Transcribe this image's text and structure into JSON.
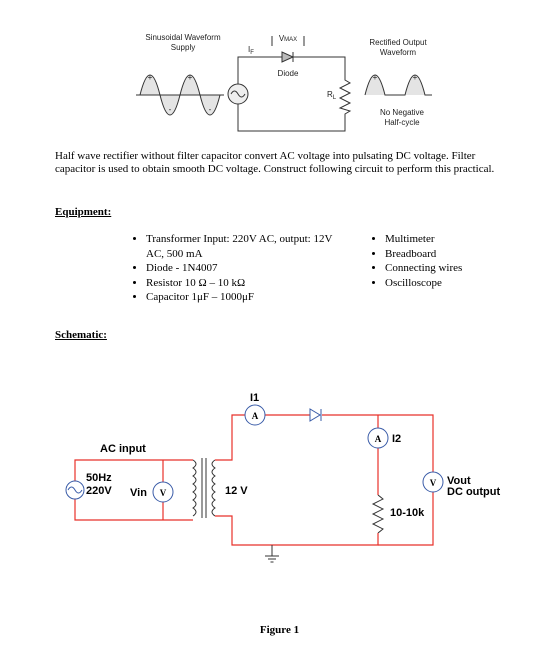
{
  "top_figure": {
    "source_label": [
      "Sinusoidal Waveform",
      "Supply"
    ],
    "current_label": "I",
    "current_subscript": "F",
    "voltage_label": "V",
    "voltage_subscript": "MAX",
    "diode_label": "Diode",
    "load_label": "R",
    "load_subscript": "L",
    "output_label": [
      "Rectified Output",
      "Waveform"
    ],
    "note": [
      "No Negative",
      "Half-cycle"
    ],
    "plus": "+",
    "minus": "-"
  },
  "intro": "Half wave rectifier without filter capacitor convert AC voltage into pulsating DC voltage. Filter capacitor is used to obtain smooth DC voltage. Construct following circuit to perform this practical.",
  "equipment": {
    "heading": "Equipment:",
    "left": [
      "Transformer Input: 220V AC, output: 12V AC, 500 mA",
      "Diode - 1N4007",
      "Resistor 10 Ω – 10 kΩ",
      "Capacitor 1μF – 1000μF"
    ],
    "right": [
      "Multimeter",
      "Breadboard",
      "Connecting wires",
      "Oscilloscope"
    ]
  },
  "schematic": {
    "heading": "Schematic:",
    "ac_input": "AC input",
    "frequency": "50Hz",
    "mains_voltage": "220V",
    "input_meter_label": "Vin",
    "voltmeter_symbol": "V",
    "ammeter_symbol": "A",
    "secondary_voltage": "12 V",
    "current_1": "I1",
    "current_2": "I2",
    "load": "10-10k",
    "output_label": "Vout",
    "output_note": "DC output"
  },
  "caption": "Figure 1"
}
